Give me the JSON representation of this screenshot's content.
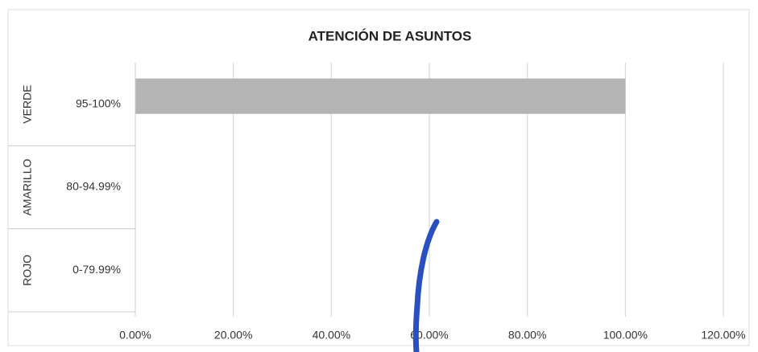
{
  "chart_data": {
    "type": "barh",
    "title": "ATENCIÓN DE ASUNTOS",
    "groups": [
      "VERDE",
      "AMARILLO",
      "ROJO"
    ],
    "categories": [
      "95-100%",
      "80-94.99%",
      "0-79.99%"
    ],
    "values": [
      100,
      0,
      0
    ],
    "color": "#b4b4b4",
    "xlim": [
      0,
      120
    ],
    "xticks": [
      {
        "value": 0,
        "label": "0.00%"
      },
      {
        "value": 20,
        "label": "20.00%"
      },
      {
        "value": 40,
        "label": "40.00%"
      },
      {
        "value": 60,
        "label": "60.00%"
      },
      {
        "value": 80,
        "label": "80.00%"
      },
      {
        "value": 100,
        "label": "100.00%"
      },
      {
        "value": 120,
        "label": "120.00%"
      }
    ],
    "grid": true
  }
}
